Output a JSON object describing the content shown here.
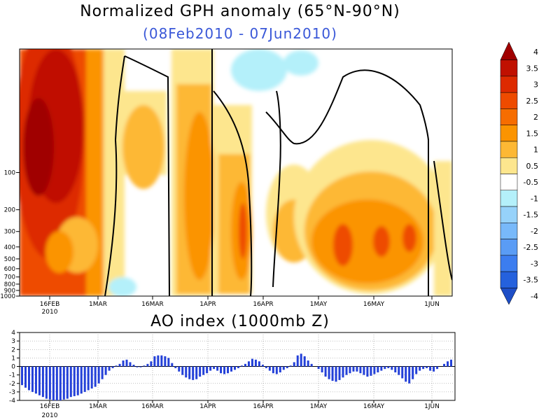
{
  "chart_data": [
    {
      "type": "heatmap",
      "title": "Normalized GPH anomaly (65°N-90°N)",
      "subtitle": "(08Feb2010 - 07Jun2010)",
      "x_ticks": [
        "16FEB",
        "1MAR",
        "16MAR",
        "1APR",
        "16APR",
        "1MAY",
        "16MAY",
        "1JUN"
      ],
      "x_year_label": "2010",
      "y_ticks": [
        "100",
        "200",
        "300",
        "400",
        "500",
        "600",
        "700",
        "800",
        "900",
        "1000"
      ],
      "colorbar_labels": [
        "4",
        "3.5",
        "3",
        "2.5",
        "2",
        "1.5",
        "1",
        "0.5",
        "-0.5",
        "-1",
        "-1.5",
        "-2",
        "-2.5",
        "-3",
        "-3.5",
        "-4"
      ],
      "colorbar_colors": [
        "#a00000",
        "#c01000",
        "#dd2a00",
        "#ee4b00",
        "#f66d00",
        "#fb9400",
        "#fdb834",
        "#fde68e",
        "#ffffff",
        "#b4f0fa",
        "#96d2fa",
        "#78b9fa",
        "#5a9cf5",
        "#3c7def",
        "#2561dd",
        "#1e4ec6"
      ],
      "time_sections": [
        {
          "start": "08Feb2010",
          "end": "20Feb2010",
          "anomaly": 3.8
        },
        {
          "start": "21Feb2010",
          "end": "28Feb2010",
          "anomaly": 2.0
        },
        {
          "start": "01Mar2010",
          "end": "20Mar2010",
          "anomaly": 0.8
        },
        {
          "start": "21Mar2010",
          "end": "31Mar2010",
          "anomaly": 1.6
        },
        {
          "start": "01Apr2010",
          "end": "15Apr2010",
          "anomaly": 1.6
        },
        {
          "start": "16Apr2010",
          "end": "30Apr2010",
          "anomaly": 0.8
        },
        {
          "start": "01May2010",
          "end": "31May2010",
          "anomaly": 1.6
        },
        {
          "start": "01Jun2010",
          "end": "07Jun2010",
          "anomaly": 0.8
        }
      ]
    },
    {
      "type": "bar",
      "title": "AO index (1000mb Z)",
      "x_ticks": [
        "16FEB",
        "1MAR",
        "16MAR",
        "1APR",
        "16APR",
        "1MAY",
        "16MAY",
        "1JUN"
      ],
      "x_year_label": "2010",
      "ylim": [
        -4,
        4
      ],
      "y_ticks": [
        "4",
        "3",
        "2",
        "1",
        "0",
        "-1",
        "-2",
        "-3",
        "-4"
      ],
      "start_date": "08Feb2010",
      "values": [
        -2.2,
        -2.5,
        -2.8,
        -3.0,
        -3.2,
        -3.4,
        -3.6,
        -3.8,
        -3.9,
        -4.0,
        -4.0,
        -4.0,
        -3.9,
        -3.8,
        -3.6,
        -3.5,
        -3.4,
        -3.2,
        -3.0,
        -2.8,
        -2.6,
        -2.4,
        -2.0,
        -1.5,
        -1.0,
        -0.5,
        -0.2,
        0.1,
        0.3,
        0.7,
        0.8,
        0.5,
        0.2,
        -0.1,
        -0.1,
        0.1,
        0.3,
        0.6,
        1.2,
        1.3,
        1.3,
        1.2,
        1.0,
        0.4,
        -0.2,
        -0.6,
        -1.0,
        -1.3,
        -1.5,
        -1.6,
        -1.5,
        -1.2,
        -1.0,
        -0.8,
        -0.5,
        -0.3,
        -0.5,
        -0.8,
        -0.9,
        -0.8,
        -0.6,
        -0.4,
        -0.2,
        0.1,
        0.3,
        0.6,
        0.9,
        0.8,
        0.6,
        0.2,
        -0.2,
        -0.5,
        -0.8,
        -0.9,
        -0.7,
        -0.4,
        -0.2,
        0.1,
        0.5,
        1.3,
        1.5,
        1.2,
        0.7,
        0.3,
        0.0,
        -0.3,
        -0.7,
        -1.2,
        -1.5,
        -1.7,
        -1.8,
        -1.6,
        -1.3,
        -1.0,
        -0.8,
        -0.6,
        -0.6,
        -0.8,
        -1.0,
        -1.2,
        -1.1,
        -0.9,
        -0.7,
        -0.5,
        -0.3,
        -0.2,
        -0.4,
        -0.7,
        -1.0,
        -1.4,
        -1.8,
        -2.0,
        -1.5,
        -0.9,
        -0.5,
        -0.3,
        -0.2,
        -0.5,
        -0.6,
        -0.3,
        0.0,
        0.3,
        0.6,
        0.8
      ]
    }
  ]
}
